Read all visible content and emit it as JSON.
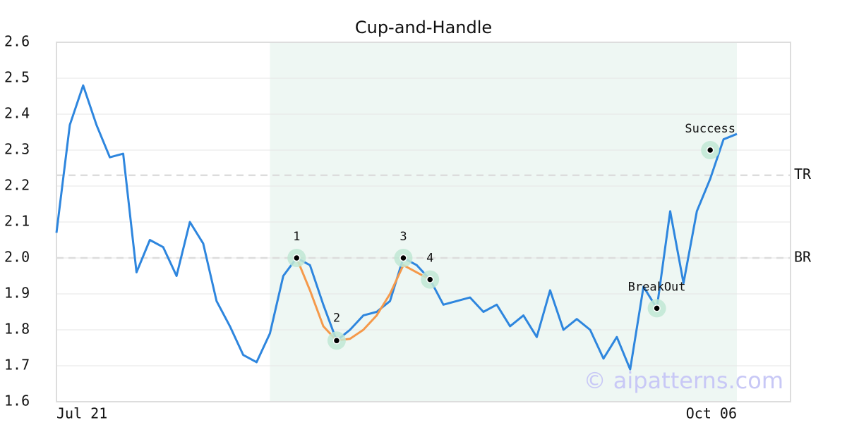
{
  "chart_data": {
    "type": "line",
    "title": "Cup-and-Handle",
    "categories": [
      "Jul 21",
      null,
      null,
      null,
      null,
      null,
      null,
      null,
      null,
      null,
      null,
      null,
      null,
      null,
      null,
      null,
      null,
      null,
      null,
      null,
      null,
      null,
      null,
      null,
      null,
      null,
      null,
      null,
      null,
      null,
      null,
      null,
      null,
      null,
      null,
      null,
      null,
      null,
      null,
      null,
      null,
      null,
      null,
      null,
      null,
      null,
      null,
      null,
      null,
      null,
      null,
      "Oct 06"
    ],
    "series": [
      {
        "color": "#2e86de",
        "values": [
          2.07,
          2.37,
          2.48,
          2.37,
          2.28,
          2.29,
          1.96,
          2.05,
          2.03,
          1.95,
          2.1,
          2.04,
          1.88,
          1.81,
          1.73,
          1.71,
          1.79,
          1.95,
          2.0,
          1.98,
          1.87,
          1.77,
          1.8,
          1.84,
          1.85,
          1.88,
          2.0,
          1.98,
          1.94,
          1.87,
          1.88,
          1.89,
          1.85,
          1.87,
          1.81,
          1.84,
          1.78,
          1.91,
          1.8,
          1.83,
          1.8,
          1.72,
          1.78,
          1.69,
          1.92,
          1.86,
          2.13,
          1.93,
          2.13,
          2.22,
          2.33,
          2.345
        ]
      },
      {
        "color": "#f5994a",
        "values": [
          null,
          null,
          null,
          null,
          null,
          null,
          null,
          null,
          null,
          null,
          null,
          null,
          null,
          null,
          null,
          null,
          null,
          null,
          2.0,
          1.91,
          1.81,
          1.77,
          1.775,
          1.8,
          1.84,
          1.9,
          1.98,
          1.96,
          1.94,
          null,
          null,
          null,
          null,
          null,
          null,
          null,
          null,
          null,
          null,
          null,
          null,
          null,
          null,
          null,
          null,
          null,
          null,
          null,
          null,
          null,
          null,
          null
        ]
      }
    ],
    "annotations": [
      {
        "label": "1",
        "index": 18,
        "value": 2.0
      },
      {
        "label": "2",
        "index": 21,
        "value": 1.77
      },
      {
        "label": "3",
        "index": 26,
        "value": 2.0
      },
      {
        "label": "4",
        "index": 28,
        "value": 1.94
      },
      {
        "label": "BreakOut",
        "index": 45,
        "value": 1.86
      },
      {
        "label": "Success",
        "index": 49,
        "value": 2.3
      }
    ],
    "levels": [
      {
        "label": "TR",
        "value": 2.23
      },
      {
        "label": "BR",
        "value": 2.0
      }
    ],
    "shade": [
      16,
      51
    ],
    "watermark": "© aipatterns.com",
    "ylim": [
      1.6,
      2.6
    ],
    "yticks": [
      1.6,
      1.7,
      1.8,
      1.9,
      {
        "value": 2.0,
        "label": "2.0"
      },
      2.1,
      2.2,
      2.3,
      2.4,
      2.5,
      2.6
    ],
    "grid": true
  }
}
